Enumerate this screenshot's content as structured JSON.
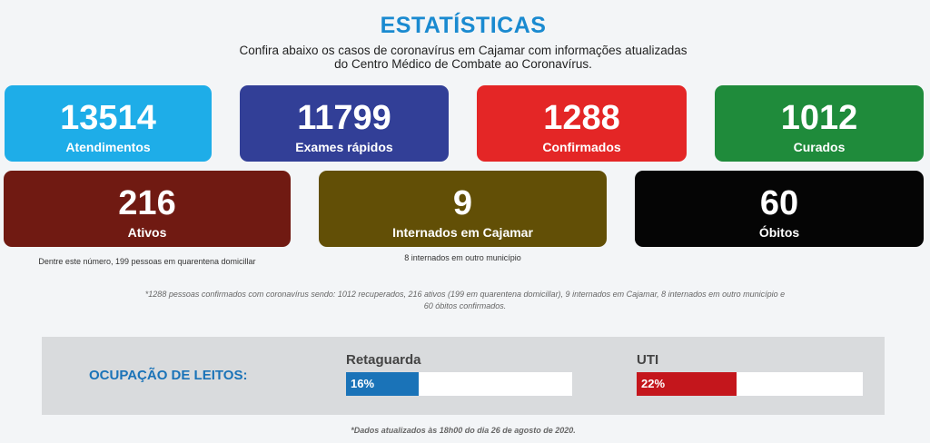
{
  "header": {
    "title": "ESTATÍSTICAS",
    "subtitle_line1": "Confira abaixo os casos de coronavírus em Cajamar com informações atualizadas",
    "subtitle_line2": "do Centro Médico de Combate ao Coronavírus."
  },
  "cards": [
    {
      "value": "13514",
      "label": "Atendimentos",
      "color": "#1eade8"
    },
    {
      "value": "11799",
      "label": "Exames rápidos",
      "color": "#323f97"
    },
    {
      "value": "1288",
      "label": "Confirmados",
      "color": "#e42626"
    },
    {
      "value": "1012",
      "label": "Curados",
      "color": "#1f8b3b"
    },
    {
      "value": "216",
      "label": "Ativos",
      "color": "#701a12"
    },
    {
      "value": "9",
      "label": "Internados em Cajamar",
      "color": "#624f06"
    },
    {
      "value": "60",
      "label": "Óbitos",
      "color": "#050505"
    }
  ],
  "notes": {
    "ativos": "Dentre este número, 199 pessoas em quarentena domicillar",
    "internados": "8 internados em outro município"
  },
  "footnote": {
    "line1": "*1288 pessoas confirmados com coronavírus sendo: 1012 recuperados, 216 ativos (199 em quarentena domicillar), 9 internados em Cajamar, 8 internados em outro município e",
    "line2": "60 óbitos confirmados."
  },
  "occupancy": {
    "label": "OCUPAÇÃO DE LEITOS:",
    "retaguarda": {
      "title": "Retaguarda",
      "value_text": "16%",
      "percent": 16,
      "color": "#1a73b8"
    },
    "uti": {
      "title": "UTI",
      "value_text": "22%",
      "percent": 22,
      "color": "#c4161c"
    }
  },
  "updated": "*Dados atualizados às 18h00 do dia 26 de agosto de 2020."
}
